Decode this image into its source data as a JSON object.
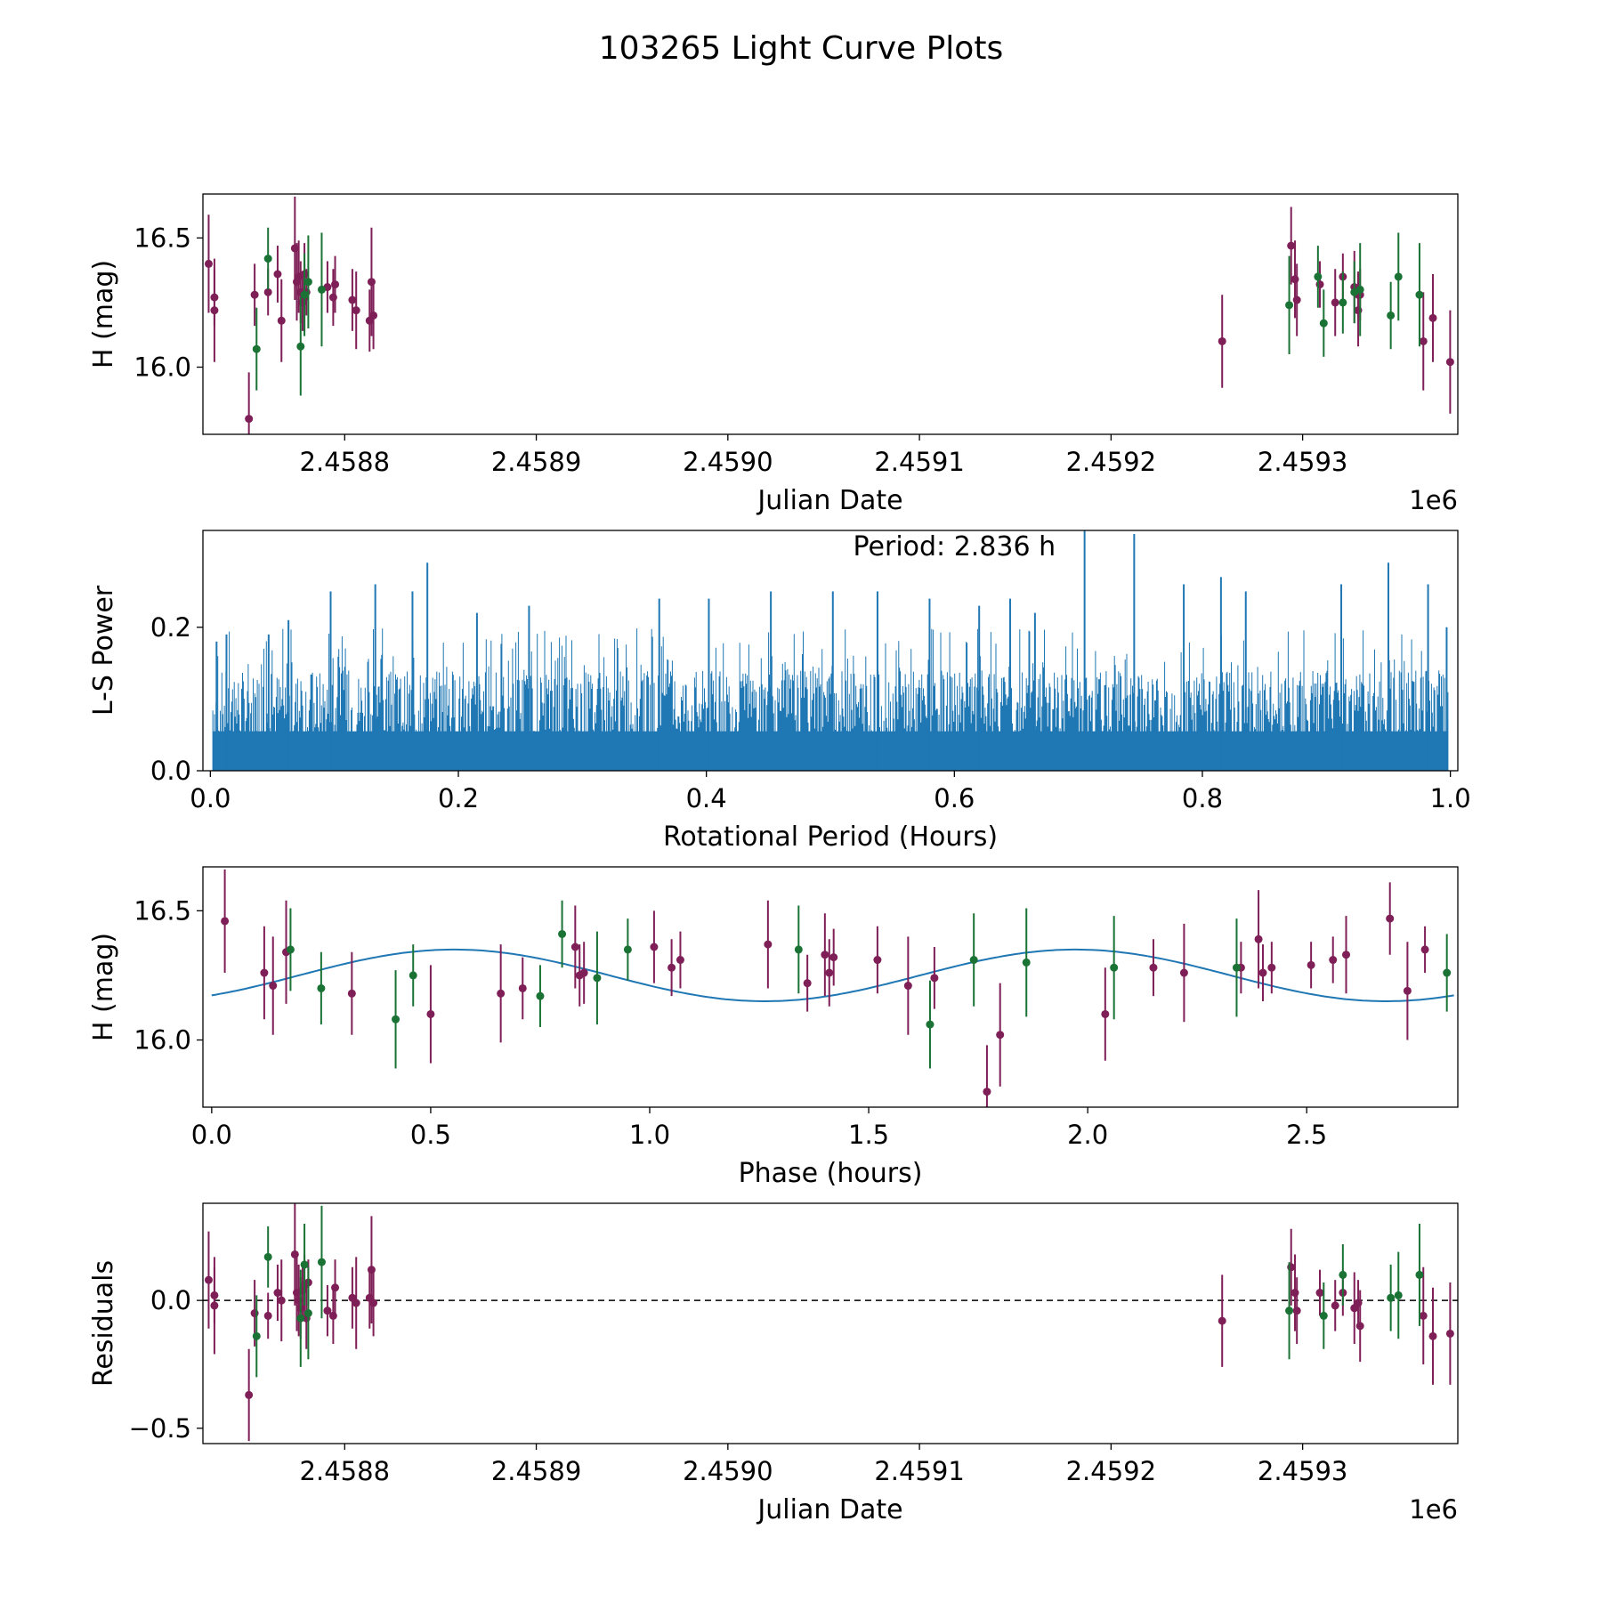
{
  "figure": {
    "title": "103265 Light Curve Plots"
  },
  "colors": {
    "red": "#7f1f57",
    "green": "#1a7335",
    "blue": "#1f77b4"
  },
  "chart_data": [
    {
      "id": "lightcurve",
      "type": "scatter",
      "xlabel": "Julian Date",
      "ylabel": "H (mag)",
      "offset_text": "1e6",
      "xlim": [
        2458726,
        2459381
      ],
      "ylim": [
        15.74,
        16.67
      ],
      "xticks": [
        2458800,
        2458900,
        2459000,
        2459100,
        2459200,
        2459300
      ],
      "xticklabels": [
        "2.4588",
        "2.4589",
        "2.4590",
        "2.4591",
        "2.4592",
        "2.4593"
      ],
      "yticks": [
        16.0,
        16.5
      ],
      "yticklabels": [
        "16.0",
        "16.5"
      ],
      "series": [
        {
          "name": "red",
          "color": "red",
          "points": [
            [
              2458729,
              16.4,
              0.19
            ],
            [
              2458732,
              16.27,
              0.11
            ],
            [
              2458732,
              16.22,
              0.2
            ],
            [
              2458750,
              15.8,
              0.18
            ],
            [
              2458753,
              16.28,
              0.12
            ],
            [
              2458760,
              16.29,
              0.09
            ],
            [
              2458765,
              16.36,
              0.11
            ],
            [
              2458767,
              16.18,
              0.16
            ],
            [
              2458774,
              16.46,
              0.2
            ],
            [
              2458775,
              16.33,
              0.15
            ],
            [
              2458776,
              16.35,
              0.14
            ],
            [
              2458777,
              16.29,
              0.12
            ],
            [
              2458778,
              16.25,
              0.11
            ],
            [
              2458779,
              16.36,
              0.12
            ],
            [
              2458779,
              16.27,
              0.13
            ],
            [
              2458780,
              16.29,
              0.09
            ],
            [
              2458791,
              16.31,
              0.1
            ],
            [
              2458795,
              16.32,
              0.11
            ],
            [
              2458794,
              16.27,
              0.11
            ],
            [
              2458804,
              16.26,
              0.12
            ],
            [
              2458806,
              16.22,
              0.15
            ],
            [
              2458814,
              16.33,
              0.21
            ],
            [
              2458813,
              16.18,
              0.12
            ],
            [
              2458815,
              16.2,
              0.13
            ],
            [
              2459258,
              16.1,
              0.18
            ],
            [
              2459294,
              16.47,
              0.15
            ],
            [
              2459296,
              16.34,
              0.15
            ],
            [
              2459297,
              16.26,
              0.14
            ],
            [
              2459309,
              16.32,
              0.09
            ],
            [
              2459317,
              16.25,
              0.13
            ],
            [
              2459321,
              16.35,
              0.09
            ],
            [
              2459327,
              16.31,
              0.14
            ],
            [
              2459329,
              16.28,
              0.09
            ],
            [
              2459329,
              16.22,
              0.14
            ],
            [
              2459330,
              16.28,
              0.1
            ],
            [
              2459363,
              16.1,
              0.19
            ],
            [
              2459368,
              16.19,
              0.17
            ],
            [
              2459377,
              16.02,
              0.2
            ]
          ]
        },
        {
          "name": "green",
          "color": "green",
          "points": [
            [
              2458754,
              16.07,
              0.16
            ],
            [
              2458760,
              16.42,
              0.12
            ],
            [
              2458777,
              16.08,
              0.19
            ],
            [
              2458779,
              16.28,
              0.16
            ],
            [
              2458781,
              16.33,
              0.18
            ],
            [
              2458788,
              16.3,
              0.22
            ],
            [
              2459293,
              16.24,
              0.19
            ],
            [
              2459308,
              16.35,
              0.12
            ],
            [
              2459311,
              16.17,
              0.13
            ],
            [
              2459321,
              16.25,
              0.12
            ],
            [
              2459327,
              16.29,
              0.12
            ],
            [
              2459330,
              16.3,
              0.18
            ],
            [
              2459346,
              16.2,
              0.13
            ],
            [
              2459350,
              16.35,
              0.17
            ],
            [
              2459361,
              16.28,
              0.2
            ]
          ]
        }
      ]
    },
    {
      "id": "periodogram",
      "type": "line",
      "xlabel": "Rotational Period (Hours)",
      "ylabel": "L-S Power",
      "annotation": "Period: 2.836 h",
      "xlim": [
        -0.006,
        1.006
      ],
      "ylim": [
        0,
        0.335
      ],
      "xticks": [
        0,
        0.2,
        0.4,
        0.6,
        0.8,
        1.0
      ],
      "xticklabels": [
        "0.0",
        "0.2",
        "0.4",
        "0.6",
        "0.8",
        "1.0"
      ],
      "yticks": [
        0,
        0.2
      ],
      "yticklabels": [
        "0.0",
        "0.2"
      ],
      "peaks": [
        [
          0.005,
          0.18
        ],
        [
          0.013,
          0.19
        ],
        [
          0.047,
          0.19
        ],
        [
          0.063,
          0.21
        ],
        [
          0.097,
          0.25
        ],
        [
          0.133,
          0.26
        ],
        [
          0.163,
          0.25
        ],
        [
          0.175,
          0.29
        ],
        [
          0.215,
          0.22
        ],
        [
          0.257,
          0.23
        ],
        [
          0.362,
          0.24
        ],
        [
          0.402,
          0.24
        ],
        [
          0.452,
          0.25
        ],
        [
          0.502,
          0.25
        ],
        [
          0.538,
          0.25
        ],
        [
          0.58,
          0.24
        ],
        [
          0.62,
          0.23
        ],
        [
          0.645,
          0.24
        ],
        [
          0.665,
          0.22
        ],
        [
          0.705,
          0.34
        ],
        [
          0.745,
          0.33
        ],
        [
          0.785,
          0.26
        ],
        [
          0.815,
          0.27
        ],
        [
          0.835,
          0.25
        ],
        [
          0.912,
          0.26
        ],
        [
          0.95,
          0.29
        ],
        [
          0.982,
          0.26
        ],
        [
          0.997,
          0.2
        ]
      ]
    },
    {
      "id": "phased",
      "type": "scatter",
      "xlabel": "Phase (hours)",
      "ylabel": "H (mag)",
      "xlim": [
        -0.02,
        2.845
      ],
      "ylim": [
        15.74,
        16.67
      ],
      "xticks": [
        0,
        0.5,
        1.0,
        1.5,
        2.0,
        2.5
      ],
      "xticklabels": [
        "0.0",
        "0.5",
        "1.0",
        "1.5",
        "2.0",
        "2.5"
      ],
      "yticks": [
        16.0,
        16.5
      ],
      "yticklabels": [
        "16.0",
        "16.5"
      ],
      "fit": {
        "mean": 16.25,
        "amplitude": 0.1,
        "period": 1.418,
        "phase_offset": -0.1405
      },
      "series": [
        {
          "name": "red",
          "color": "red",
          "points": [
            [
              0.03,
              16.46,
              0.2
            ],
            [
              0.12,
              16.26,
              0.18
            ],
            [
              0.14,
              16.21,
              0.19
            ],
            [
              0.17,
              16.34,
              0.2
            ],
            [
              0.32,
              16.18,
              0.16
            ],
            [
              0.5,
              16.1,
              0.19
            ],
            [
              0.66,
              16.18,
              0.19
            ],
            [
              0.71,
              16.2,
              0.12
            ],
            [
              0.83,
              16.36,
              0.16
            ],
            [
              0.84,
              16.25,
              0.12
            ],
            [
              0.85,
              16.26,
              0.12
            ],
            [
              1.01,
              16.36,
              0.14
            ],
            [
              1.05,
              16.28,
              0.11
            ],
            [
              1.07,
              16.31,
              0.11
            ],
            [
              1.27,
              16.37,
              0.17
            ],
            [
              1.36,
              16.22,
              0.11
            ],
            [
              1.4,
              16.33,
              0.16
            ],
            [
              1.41,
              16.26,
              0.13
            ],
            [
              1.42,
              16.32,
              0.11
            ],
            [
              1.52,
              16.31,
              0.13
            ],
            [
              1.59,
              16.21,
              0.19
            ],
            [
              1.65,
              16.24,
              0.12
            ],
            [
              1.77,
              15.8,
              0.18
            ],
            [
              1.8,
              16.02,
              0.2
            ],
            [
              2.04,
              16.1,
              0.18
            ],
            [
              2.15,
              16.28,
              0.11
            ],
            [
              2.22,
              16.26,
              0.19
            ],
            [
              2.35,
              16.28,
              0.1
            ],
            [
              2.39,
              16.39,
              0.19
            ],
            [
              2.4,
              16.26,
              0.11
            ],
            [
              2.42,
              16.28,
              0.1
            ],
            [
              2.51,
              16.29,
              0.09
            ],
            [
              2.56,
              16.31,
              0.09
            ],
            [
              2.59,
              16.33,
              0.15
            ],
            [
              2.69,
              16.47,
              0.14
            ],
            [
              2.73,
              16.19,
              0.19
            ],
            [
              2.77,
              16.35,
              0.09
            ]
          ]
        },
        {
          "name": "green",
          "color": "green",
          "points": [
            [
              0.18,
              16.35,
              0.16
            ],
            [
              0.25,
              16.2,
              0.14
            ],
            [
              0.42,
              16.08,
              0.19
            ],
            [
              0.46,
              16.25,
              0.12
            ],
            [
              0.75,
              16.17,
              0.12
            ],
            [
              0.8,
              16.41,
              0.13
            ],
            [
              0.88,
              16.24,
              0.18
            ],
            [
              0.95,
              16.35,
              0.12
            ],
            [
              1.34,
              16.35,
              0.17
            ],
            [
              1.64,
              16.06,
              0.17
            ],
            [
              1.74,
              16.31,
              0.18
            ],
            [
              1.86,
              16.3,
              0.21
            ],
            [
              2.06,
              16.28,
              0.2
            ],
            [
              2.34,
              16.28,
              0.19
            ],
            [
              2.82,
              16.26,
              0.15
            ]
          ]
        }
      ]
    },
    {
      "id": "residuals",
      "type": "scatter",
      "xlabel": "Julian Date",
      "ylabel": "Residuals",
      "offset_text": "1e6",
      "reference_line": 0,
      "xlim": [
        2458726,
        2459381
      ],
      "ylim": [
        -0.56,
        0.38
      ],
      "xticks": [
        2458800,
        2458900,
        2459000,
        2459100,
        2459200,
        2459300
      ],
      "xticklabels": [
        "2.4588",
        "2.4589",
        "2.4590",
        "2.4591",
        "2.4592",
        "2.4593"
      ],
      "yticks": [
        -0.5,
        0.0
      ],
      "yticklabels": [
        "−0.5",
        "0.0"
      ],
      "series": [
        {
          "name": "red",
          "color": "red",
          "points": [
            [
              2458729,
              0.08,
              0.19
            ],
            [
              2458732,
              0.02,
              0.11
            ],
            [
              2458732,
              -0.02,
              0.19
            ],
            [
              2458750,
              -0.37,
              0.18
            ],
            [
              2458753,
              -0.05,
              0.13
            ],
            [
              2458760,
              -0.06,
              0.09
            ],
            [
              2458765,
              0.03,
              0.11
            ],
            [
              2458767,
              0.0,
              0.16
            ],
            [
              2458774,
              0.18,
              0.2
            ],
            [
              2458775,
              0.03,
              0.15
            ],
            [
              2458776,
              0.0,
              0.14
            ],
            [
              2458777,
              -0.03,
              0.12
            ],
            [
              2458778,
              0.04,
              0.11
            ],
            [
              2458779,
              0.06,
              0.12
            ],
            [
              2458780,
              -0.07,
              0.12
            ],
            [
              2458781,
              0.07,
              0.09
            ],
            [
              2458791,
              -0.04,
              0.1
            ],
            [
              2458794,
              -0.06,
              0.11
            ],
            [
              2458795,
              0.05,
              0.11
            ],
            [
              2458804,
              0.01,
              0.12
            ],
            [
              2458806,
              -0.01,
              0.18
            ],
            [
              2458813,
              0.01,
              0.12
            ],
            [
              2458814,
              0.12,
              0.21
            ],
            [
              2458815,
              -0.01,
              0.13
            ],
            [
              2459258,
              -0.08,
              0.18
            ],
            [
              2459294,
              0.13,
              0.15
            ],
            [
              2459296,
              0.03,
              0.15
            ],
            [
              2459297,
              -0.04,
              0.13
            ],
            [
              2459309,
              0.03,
              0.09
            ],
            [
              2459317,
              -0.02,
              0.1
            ],
            [
              2459321,
              0.03,
              0.09
            ],
            [
              2459327,
              -0.03,
              0.14
            ],
            [
              2459329,
              -0.01,
              0.09
            ],
            [
              2459330,
              -0.1,
              0.14
            ],
            [
              2459363,
              -0.06,
              0.19
            ],
            [
              2459368,
              -0.14,
              0.19
            ],
            [
              2459377,
              -0.13,
              0.2
            ]
          ]
        },
        {
          "name": "green",
          "color": "green",
          "points": [
            [
              2458754,
              -0.14,
              0.16
            ],
            [
              2458760,
              0.17,
              0.12
            ],
            [
              2458777,
              -0.07,
              0.19
            ],
            [
              2458779,
              0.14,
              0.16
            ],
            [
              2458781,
              -0.05,
              0.18
            ],
            [
              2458788,
              0.15,
              0.22
            ],
            [
              2459293,
              -0.04,
              0.19
            ],
            [
              2459311,
              -0.06,
              0.13
            ],
            [
              2459321,
              0.1,
              0.12
            ],
            [
              2459346,
              0.01,
              0.13
            ],
            [
              2459350,
              0.02,
              0.17
            ],
            [
              2459361,
              0.1,
              0.2
            ]
          ]
        }
      ]
    }
  ]
}
